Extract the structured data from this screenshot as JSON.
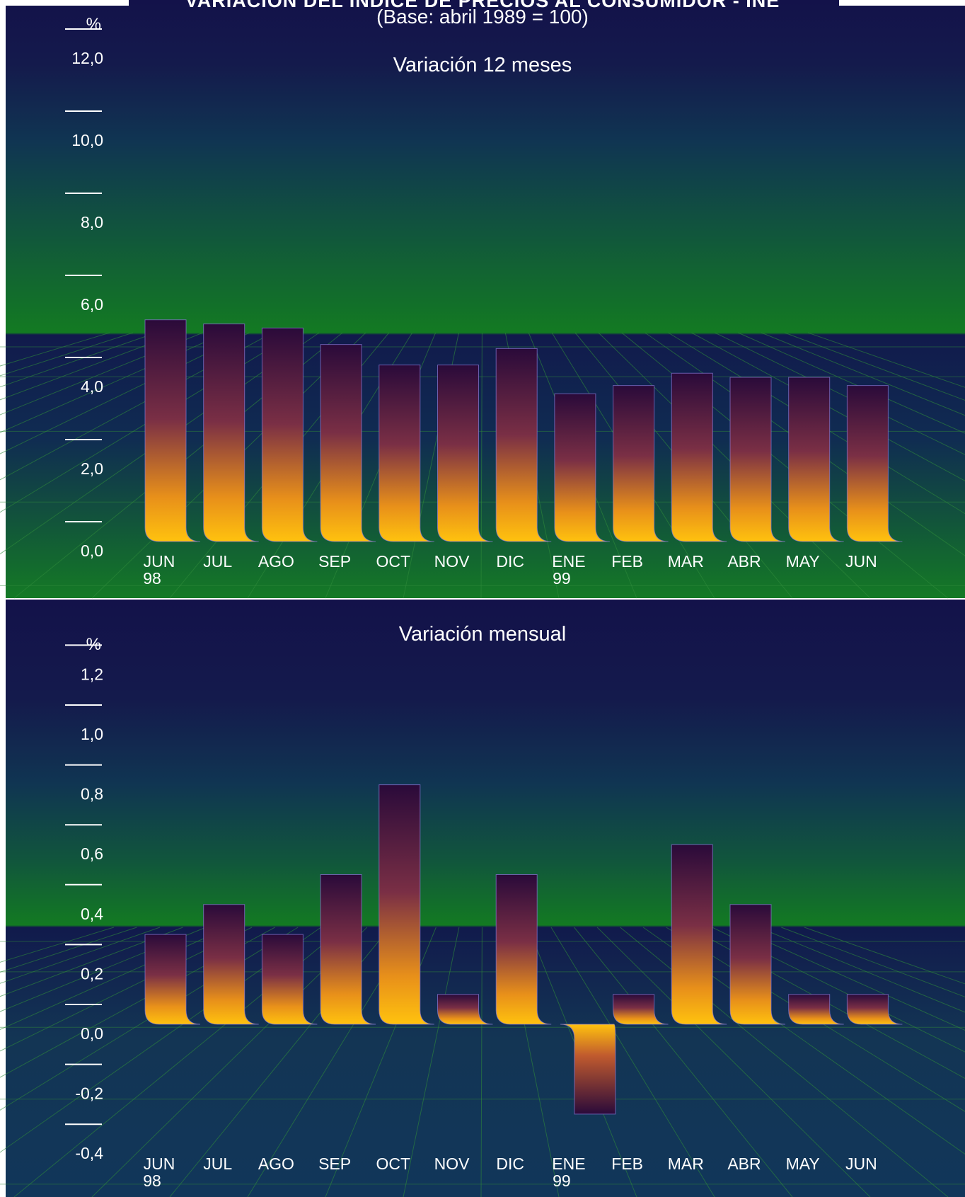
{
  "title": "VARIACIÓN DEL ÍNDICE DE PRECIOS AL CONSUMIDOR - INE",
  "subtitle": "(Base: abril 1989 = 100)",
  "colors": {
    "bar_top": "#2a0a3a",
    "bar_bottom": "#ffc20e",
    "grid": "#2f8a3a",
    "text": "#ffffff"
  },
  "chart_data": [
    {
      "type": "bar",
      "title": "Variación 12 meses",
      "ylabel": "%",
      "categories": [
        "JUN\n98",
        "JUL",
        "AGO",
        "SEP",
        "OCT",
        "NOV",
        "DIC",
        "ENE\n99",
        "FEB",
        "MAR",
        "ABR",
        "MAY",
        "JUN"
      ],
      "values": [
        5.4,
        5.3,
        5.2,
        4.8,
        4.3,
        4.3,
        4.7,
        3.6,
        3.8,
        4.1,
        4.0,
        4.0,
        3.8
      ],
      "ylim": [
        0,
        12
      ],
      "yticks": [
        "0,0",
        "2,0",
        "4,0",
        "6,0",
        "8,0",
        "10,0",
        "12,0"
      ],
      "grid": true,
      "legend": "none"
    },
    {
      "type": "bar",
      "title": "Variación mensual",
      "ylabel": "%",
      "categories": [
        "JUN\n98",
        "JUL",
        "AGO",
        "SEP",
        "OCT",
        "NOV",
        "DIC",
        "ENE\n99",
        "FEB",
        "MAR",
        "ABR",
        "MAY",
        "JUN"
      ],
      "values": [
        0.3,
        0.4,
        0.3,
        0.5,
        0.8,
        0.1,
        0.5,
        -0.3,
        0.1,
        0.6,
        0.4,
        0.1,
        0.1
      ],
      "ylim": [
        -0.4,
        1.2
      ],
      "yticks": [
        "-0,4",
        "-0,2",
        "0,0",
        "0,2",
        "0,4",
        "0,6",
        "0,8",
        "1,0",
        "1,2"
      ],
      "grid": true,
      "legend": "none"
    }
  ]
}
